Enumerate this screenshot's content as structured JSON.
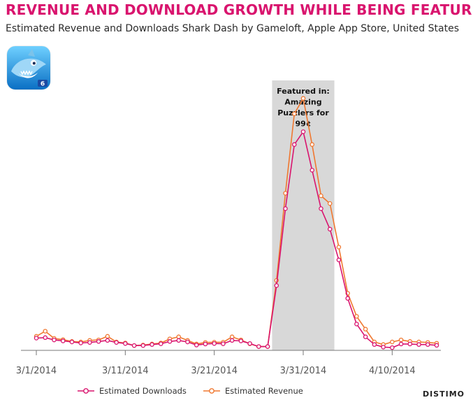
{
  "header": {
    "title": "REVENUE AND DOWNLOAD GROWTH WHILE BEING FEATURED",
    "subtitle": "Estimated Revenue and Downloads Shark Dash by Gameloft, Apple App Store, United States"
  },
  "brand": "DISTIMO",
  "colors": {
    "title": "#d9146e",
    "downloads": "#d9146e",
    "revenue": "#f07830",
    "featured_band": "#d8d8d8",
    "axis": "#777777"
  },
  "app_icon": {
    "name": "shark-dash-app-icon",
    "badge": "6"
  },
  "chart_data": {
    "type": "line",
    "x_start": "3/1/2014",
    "x": [
      "3/1/2014",
      "3/2/2014",
      "3/3/2014",
      "3/4/2014",
      "3/5/2014",
      "3/6/2014",
      "3/7/2014",
      "3/8/2014",
      "3/9/2014",
      "3/10/2014",
      "3/11/2014",
      "3/12/2014",
      "3/13/2014",
      "3/14/2014",
      "3/15/2014",
      "3/16/2014",
      "3/17/2014",
      "3/18/2014",
      "3/19/2014",
      "3/20/2014",
      "3/21/2014",
      "3/22/2014",
      "3/23/2014",
      "3/24/2014",
      "3/25/2014",
      "3/26/2014",
      "3/27/2014",
      "3/28/2014",
      "3/29/2014",
      "3/30/2014",
      "3/31/2014",
      "4/1/2014",
      "4/2/2014",
      "4/3/2014",
      "4/4/2014",
      "4/5/2014",
      "4/6/2014",
      "4/7/2014",
      "4/8/2014",
      "4/9/2014",
      "4/10/2014",
      "4/11/2014",
      "4/12/2014",
      "4/13/2014",
      "4/14/2014",
      "4/15/2014"
    ],
    "x_ticks": [
      "3/1/2014",
      "3/11/2014",
      "3/21/2014",
      "3/31/2014",
      "4/10/2014"
    ],
    "x_tick_indices": [
      0,
      10,
      20,
      30,
      40
    ],
    "series": [
      {
        "name": "Estimated Downloads",
        "color": "#d9146e",
        "values": [
          4.5,
          4.7,
          3.8,
          3.4,
          3.0,
          2.6,
          2.8,
          3.2,
          3.6,
          2.8,
          2.4,
          1.6,
          1.6,
          2.0,
          2.3,
          3.2,
          3.6,
          3.0,
          1.8,
          2.2,
          2.4,
          2.3,
          3.6,
          3.4,
          2.4,
          1.2,
          1.2,
          25,
          55,
          80,
          85,
          70,
          55,
          47,
          35,
          20,
          10,
          5,
          2,
          1,
          0.8,
          2.2,
          2.2,
          2.0,
          2.0,
          1.7
        ]
      },
      {
        "name": "Estimated Revenue",
        "color": "#f07830",
        "values": [
          5.2,
          7.2,
          4.4,
          3.9,
          3.2,
          3.0,
          3.6,
          3.8,
          5.2,
          3.0,
          2.6,
          1.6,
          1.8,
          2.2,
          2.6,
          4.2,
          5.0,
          3.6,
          2.2,
          2.8,
          2.9,
          2.9,
          5.0,
          3.8,
          2.3,
          1.2,
          1.2,
          27,
          61,
          92,
          98,
          80,
          60,
          57,
          40,
          22,
          13,
          8,
          3,
          2,
          3,
          3.8,
          3.2,
          3.0,
          2.8,
          2.5
        ]
      }
    ],
    "ylim": [
      0,
      105
    ],
    "featured_range": [
      26.5,
      33.5
    ],
    "annotation": [
      "Featured in:",
      "Amazing",
      "Puzzlers for",
      "99¢"
    ],
    "legend_position": "bottom",
    "grid": false
  }
}
